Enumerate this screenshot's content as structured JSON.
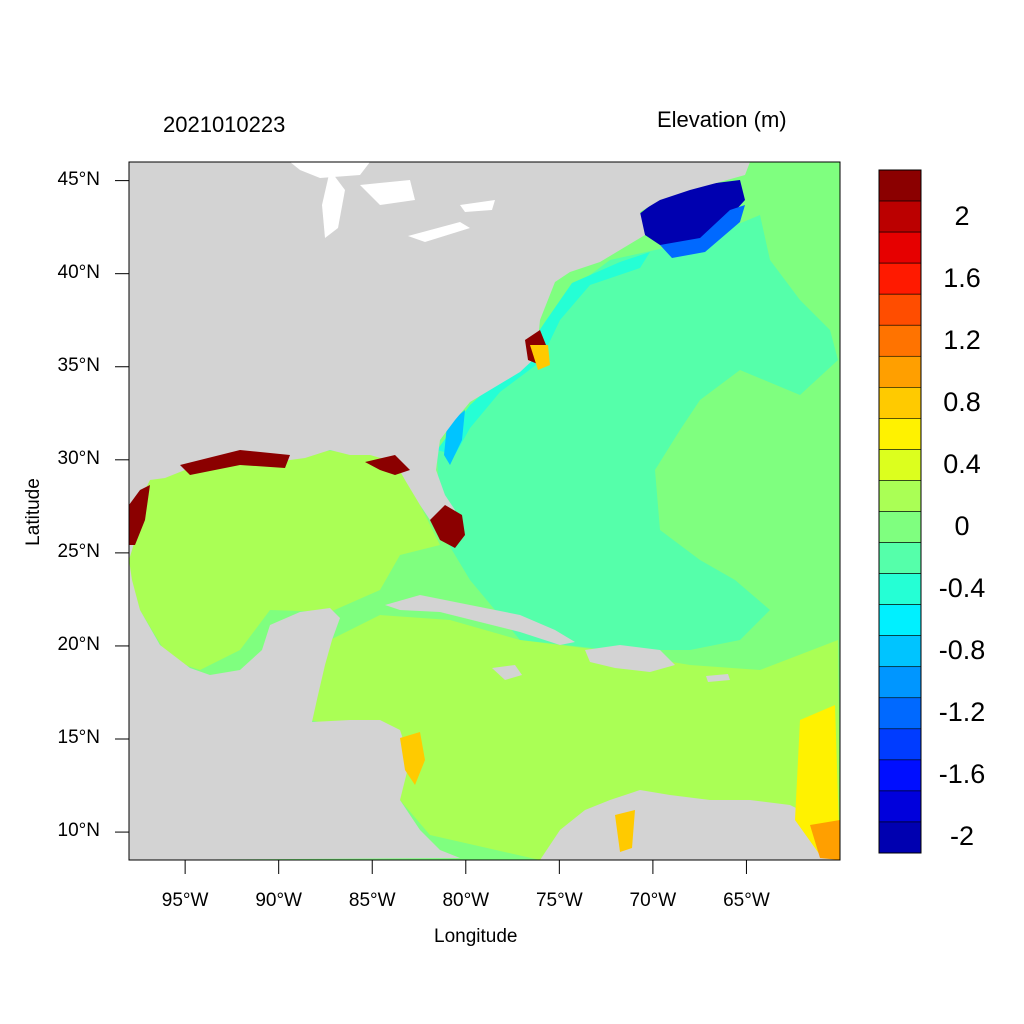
{
  "header": {
    "date_label": "2021010223",
    "variable_title": "Elevation (m)"
  },
  "axes": {
    "x_title": "Longitude",
    "y_title": "Latitude",
    "lat_ticks": [
      {
        "value": 45,
        "label": "45°N"
      },
      {
        "value": 40,
        "label": "40°N"
      },
      {
        "value": 35,
        "label": "35°N"
      },
      {
        "value": 30,
        "label": "30°N"
      },
      {
        "value": 25,
        "label": "25°N"
      },
      {
        "value": 20,
        "label": "20°N"
      },
      {
        "value": 15,
        "label": "15°N"
      },
      {
        "value": 10,
        "label": "10°N"
      }
    ],
    "lon_ticks": [
      {
        "value": -95,
        "label": "95°W"
      },
      {
        "value": -90,
        "label": "90°W"
      },
      {
        "value": -85,
        "label": "85°W"
      },
      {
        "value": -80,
        "label": "80°W"
      },
      {
        "value": -75,
        "label": "75°W"
      },
      {
        "value": -70,
        "label": "70°W"
      },
      {
        "value": -65,
        "label": "65°W"
      }
    ],
    "lon_range": [
      -98,
      -60
    ],
    "lat_range": [
      8.5,
      46
    ]
  },
  "colorbar": {
    "colors": [
      "#8b0000",
      "#bb0000",
      "#e60000",
      "#ff1a00",
      "#ff4d00",
      "#ff7300",
      "#ff9f00",
      "#ffca00",
      "#fff200",
      "#dcff1e",
      "#aaff55",
      "#7fff7f",
      "#55ffaa",
      "#25ffd5",
      "#00f0ff",
      "#00c4ff",
      "#0096ff",
      "#0069ff",
      "#003cff",
      "#000eff",
      "#0000dc",
      "#0000b0"
    ],
    "labels": [
      {
        "text": "2",
        "index": 1
      },
      {
        "text": "1.6",
        "index": 3
      },
      {
        "text": "1.2",
        "index": 5
      },
      {
        "text": "0.8",
        "index": 7
      },
      {
        "text": "0.4",
        "index": 9
      },
      {
        "text": "0",
        "index": 11
      },
      {
        "text": "-0.4",
        "index": 13
      },
      {
        "text": "-0.8",
        "index": 15
      },
      {
        "text": "-1.2",
        "index": 17
      },
      {
        "text": "-1.6",
        "index": 19
      },
      {
        "text": "-2",
        "index": 21
      }
    ]
  },
  "map_colors": {
    "land": "#d3d3d3",
    "atlantic": "#55ffaa",
    "open_ocean": "#7fff7f",
    "gulf_caribbean": "#aaff55",
    "shelf": "#25ffd5",
    "gulf_of_maine": "#0000b0",
    "surge": "#8b0000"
  }
}
